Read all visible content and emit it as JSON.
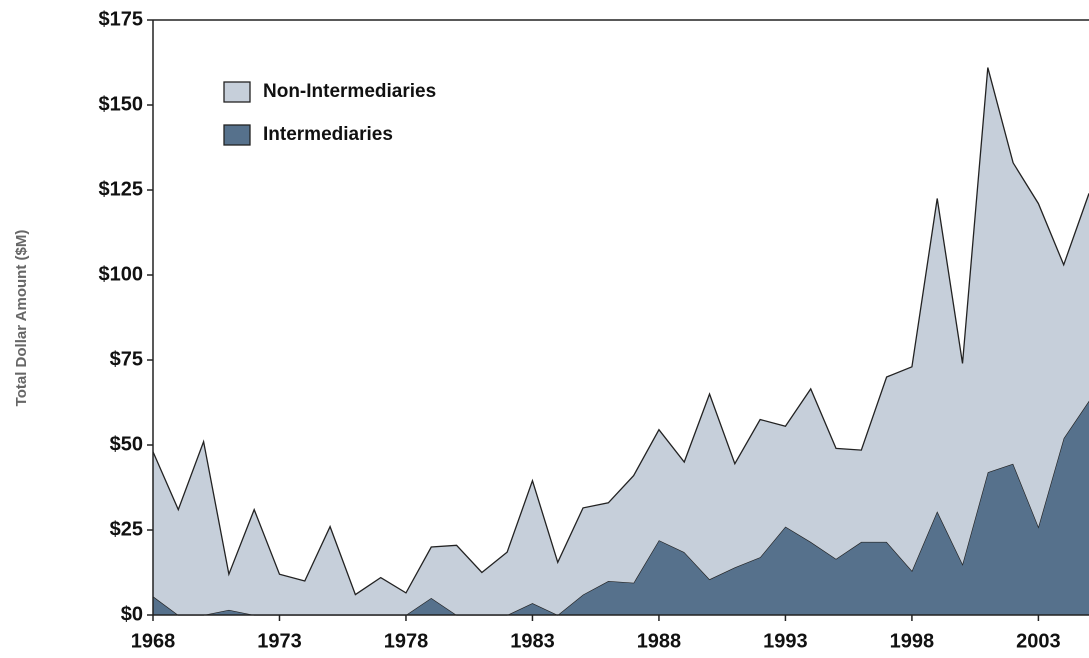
{
  "chart_data": {
    "type": "area",
    "stacked": true,
    "y_label": "Total Dollar Amount ($M)",
    "x": [
      1968,
      1969,
      1970,
      1971,
      1972,
      1973,
      1974,
      1975,
      1976,
      1977,
      1978,
      1979,
      1980,
      1981,
      1982,
      1983,
      1984,
      1985,
      1986,
      1987,
      1988,
      1989,
      1990,
      1991,
      1992,
      1993,
      1994,
      1995,
      1996,
      1997,
      1998,
      1999,
      2000,
      2001,
      2002,
      2003,
      2004,
      2005
    ],
    "series": [
      {
        "name": "Non-Intermediaries",
        "color": "#c6cfda",
        "values": [
          42.5,
          31,
          51,
          10.5,
          31,
          12,
          10,
          26,
          6,
          11,
          6.5,
          15,
          20.5,
          12.5,
          18.5,
          36,
          15.5,
          25.5,
          23,
          31.5,
          32.5,
          26.5,
          54.5,
          30.5,
          40.5,
          29.5,
          45,
          32.5,
          27,
          48.5,
          60,
          92,
          59,
          119,
          88.5,
          95,
          51,
          61
        ]
      },
      {
        "name": "Intermediaries",
        "color": "#56718c",
        "values": [
          5.5,
          0,
          0,
          1.5,
          0,
          0,
          0,
          0,
          0,
          0,
          0,
          5,
          0,
          0,
          0,
          3.5,
          0,
          6,
          10,
          9.5,
          22,
          18.5,
          10.5,
          14,
          17,
          26,
          21.5,
          16.5,
          21.5,
          21.5,
          13,
          30.5,
          15,
          42,
          44.5,
          26,
          52,
          63
        ]
      }
    ],
    "xlim": [
      1968,
      2005
    ],
    "xticks": [
      1968,
      1973,
      1978,
      1983,
      1988,
      1993,
      1998,
      2003
    ],
    "ylim": [
      0,
      175
    ],
    "yticks": [
      {
        "value": 0,
        "label": "$0"
      },
      {
        "value": 25,
        "label": "$25"
      },
      {
        "value": 50,
        "label": "$50"
      },
      {
        "value": 75,
        "label": "$75"
      },
      {
        "value": 100,
        "label": "$100"
      },
      {
        "value": 125,
        "label": "$125"
      },
      {
        "value": 150,
        "label": "$150"
      },
      {
        "value": 175,
        "label": "$175"
      }
    ],
    "legend": "upper-left"
  }
}
